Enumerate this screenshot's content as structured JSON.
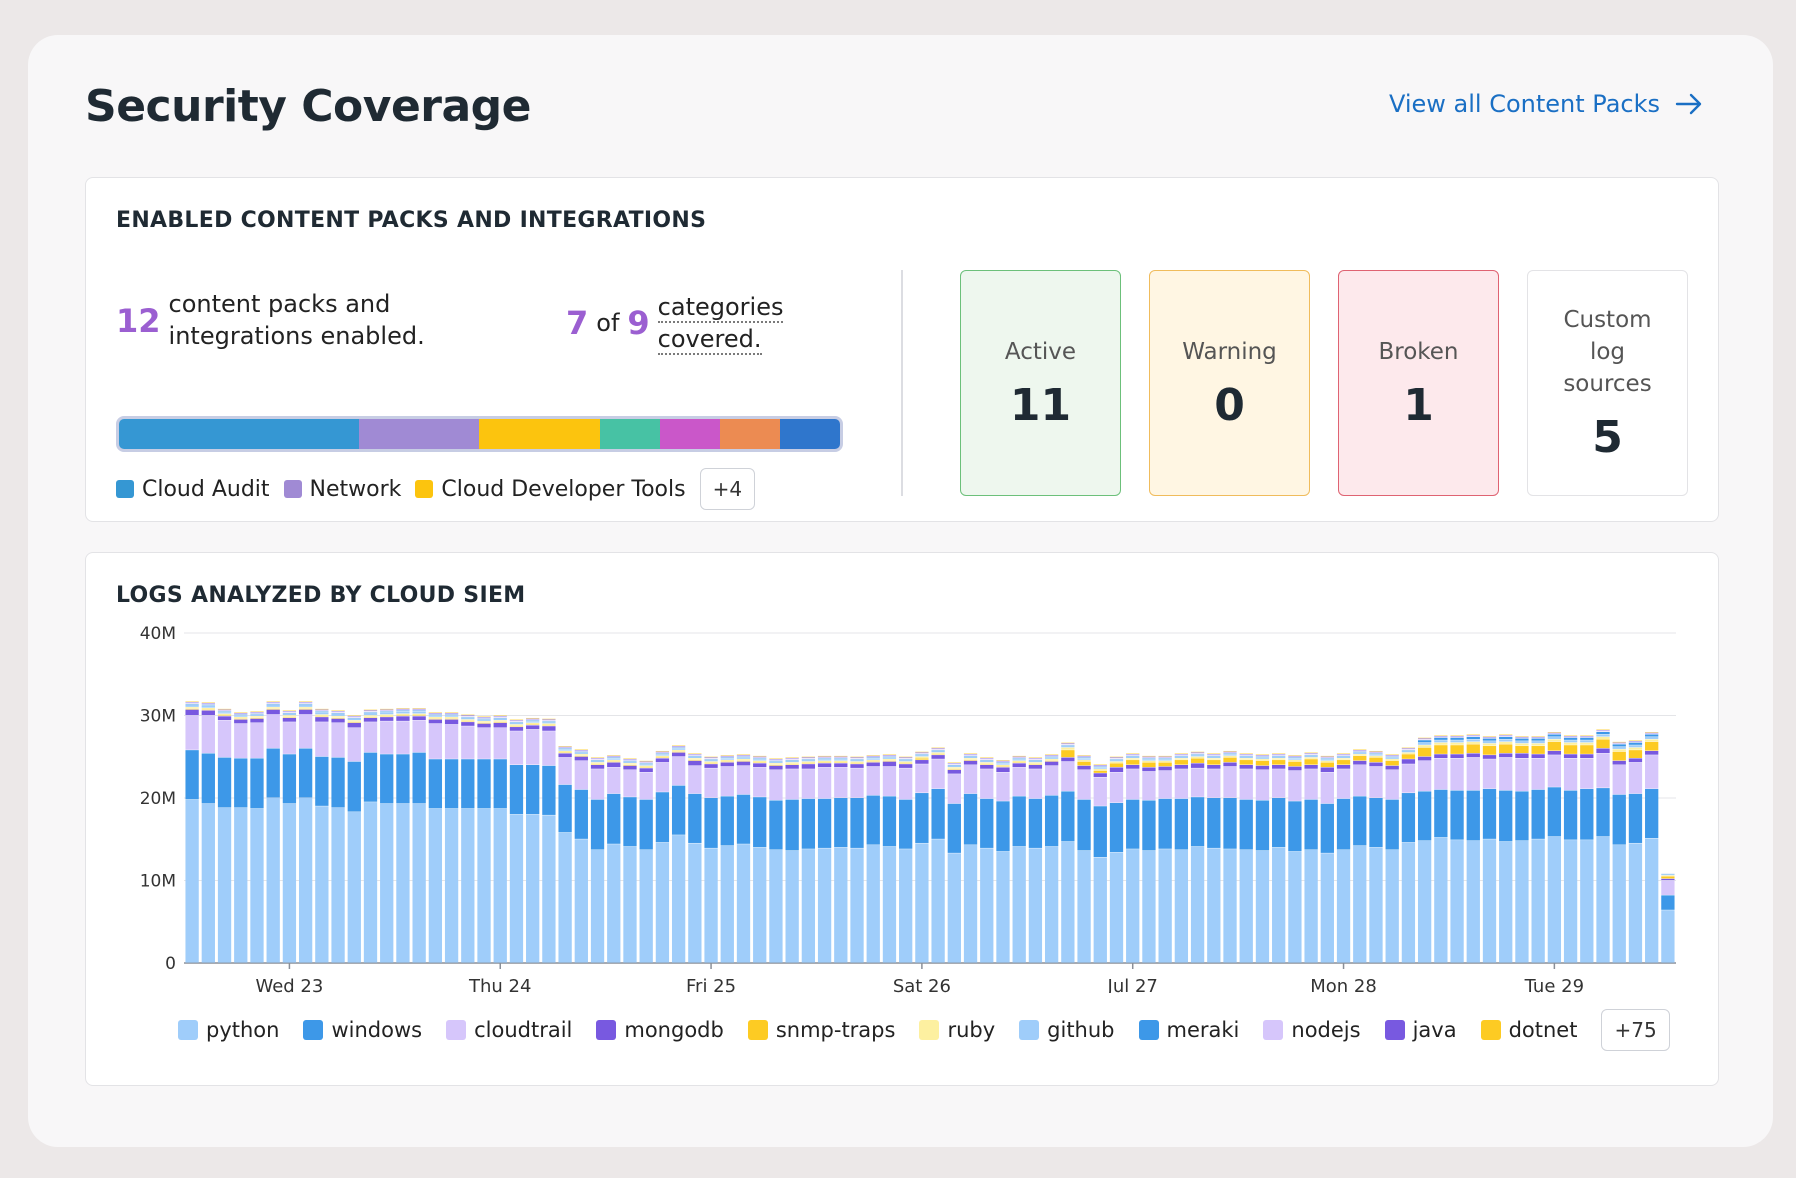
{
  "header": {
    "title": "Security Coverage",
    "view_all_label": "View all Content Packs"
  },
  "packs": {
    "title": "ENABLED CONTENT PACKS AND INTEGRATIONS",
    "enabled_count": "12",
    "enabled_text": "content packs and integrations enabled.",
    "categories_covered": "7",
    "of_text": "of",
    "categories_total": "9",
    "categories_text_1": "categories",
    "categories_text_2": "covered.",
    "bar_segments": [
      {
        "color": "#3597d3",
        "share": 2
      },
      {
        "color": "#a08ad4",
        "share": 1
      },
      {
        "color": "#fcc40e",
        "share": 1
      },
      {
        "color": "#47c2a4",
        "share": 0.5
      },
      {
        "color": "#ca57c9",
        "share": 0.5
      },
      {
        "color": "#ec8b52",
        "share": 0.5
      },
      {
        "color": "#2f76cc",
        "share": 0.5
      }
    ],
    "legend": [
      {
        "label": "Cloud Audit",
        "color": "#3597d3"
      },
      {
        "label": "Network",
        "color": "#a08ad4"
      },
      {
        "label": "Cloud Developer Tools",
        "color": "#fcc40e"
      }
    ],
    "more_label": "+4"
  },
  "status": {
    "active": {
      "label": "Active",
      "value": "11"
    },
    "warning": {
      "label": "Warning",
      "value": "0"
    },
    "broken": {
      "label": "Broken",
      "value": "1"
    },
    "custom": {
      "label": "Custom log sources",
      "value": "5"
    }
  },
  "logs": {
    "title": "LOGS ANALYZED BY CLOUD SIEM",
    "legend_more": "+75"
  },
  "chart_data": {
    "type": "bar",
    "stacked": true,
    "ylim": [
      0,
      40
    ],
    "y_unit": "M",
    "yticks": [
      "0",
      "10M",
      "20M",
      "30M",
      "40M"
    ],
    "grid": true,
    "x_tick_labels": [
      "Wed 23",
      "Thu 24",
      "Fri 25",
      "Sat 26",
      "Jul 27",
      "Mon 28",
      "Tue 29"
    ],
    "x_tick_bar_index": [
      6,
      19,
      32,
      45,
      58,
      71,
      84
    ],
    "series": [
      {
        "name": "python",
        "color": "#9fcdfa",
        "values": [
          19.8,
          19.3,
          18.8,
          18.8,
          18.7,
          20.0,
          19.3,
          20.0,
          19.0,
          18.8,
          18.3,
          19.5,
          19.3,
          19.3,
          19.3,
          18.7,
          18.7,
          18.7,
          18.7,
          18.7,
          18.0,
          18.0,
          17.9,
          15.8,
          15.0,
          13.7,
          14.4,
          14.1,
          13.7,
          14.6,
          15.5,
          14.5,
          13.9,
          14.2,
          14.4,
          14.0,
          13.7,
          13.6,
          13.8,
          13.9,
          14.0,
          13.9,
          14.3,
          14.1,
          13.8,
          14.5,
          15.0,
          13.3,
          14.3,
          13.9,
          13.5,
          14.1,
          13.9,
          14.1,
          14.7,
          13.6,
          12.8,
          13.4,
          13.8,
          13.6,
          13.8,
          13.7,
          14.1,
          13.9,
          13.8,
          13.7,
          13.6,
          14.0,
          13.5,
          13.7,
          13.3,
          13.7,
          14.2,
          14.0,
          13.7,
          14.6,
          14.8,
          15.2,
          14.9,
          14.8,
          15.0,
          14.7,
          14.8,
          15.0,
          15.3,
          14.9,
          14.9,
          15.3,
          14.3,
          14.5,
          15.1,
          6.4
        ]
      },
      {
        "name": "windows",
        "color": "#3d98e8",
        "values": [
          6.0,
          6.1,
          6.1,
          6.0,
          6.1,
          6.0,
          6.0,
          6.0,
          6.0,
          6.1,
          6.1,
          6.0,
          6.0,
          6.0,
          6.2,
          6.0,
          6.0,
          6.0,
          6.0,
          6.0,
          6.0,
          6.0,
          6.0,
          5.8,
          6.0,
          6.1,
          6.1,
          6.0,
          6.1,
          6.1,
          6.0,
          6.0,
          6.1,
          6.0,
          6.0,
          6.1,
          6.0,
          6.2,
          6.1,
          6.0,
          6.0,
          6.1,
          6.0,
          6.1,
          6.0,
          6.1,
          6.1,
          6.0,
          6.2,
          6.0,
          6.1,
          6.1,
          6.0,
          6.2,
          6.1,
          6.2,
          6.2,
          6.0,
          6.0,
          6.1,
          6.1,
          6.2,
          6.0,
          6.1,
          6.2,
          6.1,
          6.1,
          6.0,
          6.1,
          6.1,
          6.0,
          6.2,
          6.0,
          6.0,
          6.1,
          6.0,
          6.0,
          5.8,
          6.0,
          6.1,
          6.1,
          6.2,
          6.0,
          6.0,
          6.0,
          6.0,
          6.2,
          5.9,
          6.1,
          6.0,
          6.0,
          1.8
        ]
      },
      {
        "name": "cloudtrail",
        "color": "#d6c6fb",
        "values": [
          4.2,
          4.6,
          4.5,
          4.2,
          4.3,
          4.1,
          3.9,
          4.1,
          4.2,
          4.2,
          4.1,
          3.7,
          4.0,
          4.0,
          3.9,
          4.3,
          4.2,
          4.0,
          3.8,
          3.8,
          4.1,
          4.3,
          4.2,
          3.3,
          3.5,
          3.7,
          3.2,
          3.3,
          3.3,
          3.6,
          3.5,
          3.4,
          3.6,
          3.6,
          3.5,
          3.6,
          3.7,
          3.7,
          3.6,
          3.8,
          3.7,
          3.6,
          3.5,
          3.6,
          3.8,
          3.5,
          3.6,
          3.6,
          3.5,
          3.6,
          3.5,
          3.5,
          3.6,
          3.6,
          3.6,
          3.6,
          3.5,
          3.7,
          3.7,
          3.5,
          3.4,
          3.6,
          3.5,
          3.5,
          3.8,
          3.7,
          3.7,
          3.5,
          3.7,
          3.7,
          3.8,
          3.6,
          3.8,
          3.8,
          3.6,
          3.5,
          3.7,
          3.8,
          3.9,
          4.0,
          3.6,
          4.0,
          4.0,
          3.8,
          3.9,
          3.9,
          3.7,
          4.2,
          3.6,
          3.8,
          4.1,
          1.8
        ]
      },
      {
        "name": "mongodb",
        "color": "#7859e0",
        "values": [
          0.7,
          0.6,
          0.5,
          0.5,
          0.5,
          0.6,
          0.5,
          0.6,
          0.6,
          0.5,
          0.6,
          0.5,
          0.5,
          0.6,
          0.5,
          0.5,
          0.6,
          0.5,
          0.5,
          0.6,
          0.5,
          0.5,
          0.6,
          0.5,
          0.5,
          0.5,
          0.6,
          0.5,
          0.5,
          0.5,
          0.5,
          0.6,
          0.5,
          0.5,
          0.5,
          0.5,
          0.5,
          0.5,
          0.6,
          0.5,
          0.5,
          0.5,
          0.5,
          0.6,
          0.5,
          0.5,
          0.5,
          0.5,
          0.5,
          0.5,
          0.6,
          0.5,
          0.5,
          0.5,
          0.5,
          0.5,
          0.5,
          0.6,
          0.5,
          0.5,
          0.5,
          0.5,
          0.6,
          0.5,
          0.5,
          0.5,
          0.5,
          0.5,
          0.5,
          0.5,
          0.6,
          0.5,
          0.5,
          0.5,
          0.5,
          0.6,
          0.5,
          0.5,
          0.5,
          0.5,
          0.5,
          0.5,
          0.6,
          0.5,
          0.5,
          0.5,
          0.5,
          0.6,
          0.5,
          0.5,
          0.5,
          0.2
        ]
      },
      {
        "name": "snmp-traps",
        "color": "#fdcb23",
        "values": [
          0.1,
          0.1,
          0.1,
          0.1,
          0.1,
          0.1,
          0.1,
          0.1,
          0.1,
          0.1,
          0.1,
          0.1,
          0.1,
          0.1,
          0.1,
          0.1,
          0.1,
          0.1,
          0.1,
          0.1,
          0.1,
          0.1,
          0.1,
          0.1,
          0.1,
          0.1,
          0.1,
          0.1,
          0.1,
          0.1,
          0.1,
          0.1,
          0.1,
          0.1,
          0.1,
          0.1,
          0.1,
          0.1,
          0.1,
          0.1,
          0.1,
          0.1,
          0.1,
          0.1,
          0.1,
          0.2,
          0.1,
          0.1,
          0.1,
          0.1,
          0.1,
          0.1,
          0.1,
          0.1,
          0.9,
          0.5,
          0.3,
          0.5,
          0.6,
          0.6,
          0.5,
          0.6,
          0.6,
          0.6,
          0.6,
          0.6,
          0.6,
          0.6,
          0.6,
          0.7,
          0.6,
          0.6,
          0.6,
          0.6,
          0.6,
          0.6,
          1.1,
          1.1,
          1.1,
          1.1,
          1.1,
          1.1,
          0.9,
          1.0,
          1.1,
          1.1,
          1.1,
          1.1,
          1.1,
          1.0,
          1.1,
          0.3
        ]
      },
      {
        "name": "ruby",
        "color": "#fdf0a0",
        "values": [
          0.2,
          0.2,
          0.2,
          0.2,
          0.2,
          0.2,
          0.2,
          0.2,
          0.2,
          0.2,
          0.2,
          0.2,
          0.2,
          0.2,
          0.2,
          0.2,
          0.2,
          0.2,
          0.2,
          0.2,
          0.2,
          0.2,
          0.2,
          0.2,
          0.2,
          0.2,
          0.2,
          0.2,
          0.2,
          0.2,
          0.2,
          0.2,
          0.2,
          0.2,
          0.2,
          0.2,
          0.2,
          0.2,
          0.2,
          0.2,
          0.2,
          0.2,
          0.2,
          0.2,
          0.2,
          0.2,
          0.2,
          0.2,
          0.2,
          0.2,
          0.2,
          0.2,
          0.2,
          0.2,
          0.3,
          0.2,
          0.2,
          0.2,
          0.2,
          0.2,
          0.2,
          0.2,
          0.2,
          0.2,
          0.2,
          0.2,
          0.2,
          0.2,
          0.2,
          0.2,
          0.2,
          0.2,
          0.2,
          0.2,
          0.2,
          0.2,
          0.3,
          0.3,
          0.3,
          0.3,
          0.3,
          0.3,
          0.3,
          0.3,
          0.3,
          0.3,
          0.3,
          0.3,
          0.3,
          0.3,
          0.3,
          0.1
        ]
      },
      {
        "name": "github",
        "color": "#9fcdfa",
        "values": [
          0.3,
          0.3,
          0.2,
          0.2,
          0.2,
          0.3,
          0.2,
          0.3,
          0.3,
          0.3,
          0.2,
          0.3,
          0.3,
          0.3,
          0.3,
          0.2,
          0.2,
          0.2,
          0.2,
          0.2,
          0.2,
          0.2,
          0.2,
          0.2,
          0.2,
          0.2,
          0.2,
          0.2,
          0.2,
          0.2,
          0.2,
          0.2,
          0.2,
          0.2,
          0.2,
          0.2,
          0.2,
          0.2,
          0.2,
          0.2,
          0.2,
          0.2,
          0.2,
          0.2,
          0.2,
          0.2,
          0.2,
          0.2,
          0.2,
          0.2,
          0.2,
          0.2,
          0.2,
          0.2,
          0.2,
          0.2,
          0.2,
          0.2,
          0.2,
          0.2,
          0.2,
          0.2,
          0.2,
          0.2,
          0.2,
          0.2,
          0.2,
          0.2,
          0.2,
          0.2,
          0.2,
          0.2,
          0.2,
          0.2,
          0.2,
          0.2,
          0.3,
          0.3,
          0.3,
          0.3,
          0.3,
          0.3,
          0.3,
          0.3,
          0.3,
          0.3,
          0.3,
          0.3,
          0.3,
          0.3,
          0.3,
          0.1
        ]
      },
      {
        "name": "meraki",
        "color": "#3d98e8",
        "values": [
          0.1,
          0.1,
          0.1,
          0.1,
          0.1,
          0.1,
          0.1,
          0.1,
          0.1,
          0.1,
          0.1,
          0.1,
          0.1,
          0.1,
          0.1,
          0.1,
          0.1,
          0.1,
          0.1,
          0.1,
          0.1,
          0.1,
          0.1,
          0.1,
          0.1,
          0.1,
          0.1,
          0.1,
          0.1,
          0.1,
          0.1,
          0.1,
          0.1,
          0.1,
          0.1,
          0.1,
          0.1,
          0.1,
          0.1,
          0.1,
          0.1,
          0.1,
          0.1,
          0.1,
          0.1,
          0.1,
          0.1,
          0.1,
          0.1,
          0.1,
          0.1,
          0.1,
          0.1,
          0.1,
          0.1,
          0.1,
          0.1,
          0.1,
          0.1,
          0.1,
          0.1,
          0.1,
          0.1,
          0.1,
          0.1,
          0.1,
          0.1,
          0.1,
          0.1,
          0.1,
          0.1,
          0.1,
          0.1,
          0.1,
          0.1,
          0.1,
          0.3,
          0.3,
          0.3,
          0.3,
          0.3,
          0.3,
          0.3,
          0.3,
          0.3,
          0.3,
          0.3,
          0.3,
          0.3,
          0.3,
          0.3,
          0.1
        ]
      },
      {
        "name": "nodejs",
        "color": "#d6c6fb",
        "values": [
          0.1,
          0.1,
          0.1,
          0.1,
          0.1,
          0.1,
          0.1,
          0.1,
          0.1,
          0.1,
          0.1,
          0.1,
          0.1,
          0.1,
          0.1,
          0.1,
          0.1,
          0.1,
          0.1,
          0.1,
          0.1,
          0.1,
          0.1,
          0.1,
          0.1,
          0.1,
          0.1,
          0.1,
          0.1,
          0.1,
          0.1,
          0.1,
          0.1,
          0.1,
          0.1,
          0.1,
          0.1,
          0.1,
          0.1,
          0.1,
          0.1,
          0.1,
          0.1,
          0.1,
          0.1,
          0.1,
          0.1,
          0.1,
          0.1,
          0.1,
          0.1,
          0.1,
          0.1,
          0.1,
          0.1,
          0.1,
          0.1,
          0.1,
          0.1,
          0.1,
          0.1,
          0.1,
          0.1,
          0.1,
          0.1,
          0.1,
          0.1,
          0.1,
          0.1,
          0.1,
          0.1,
          0.1,
          0.1,
          0.1,
          0.1,
          0.1,
          0.1,
          0.1,
          0.1,
          0.1,
          0.1,
          0.1,
          0.1,
          0.1,
          0.1,
          0.1,
          0.1,
          0.1,
          0.1,
          0.1,
          0.1,
          0.05
        ]
      },
      {
        "name": "java",
        "color": "#7859e0",
        "values": [
          0.1,
          0.1,
          0.1,
          0.1,
          0.1,
          0.1,
          0.1,
          0.1,
          0.1,
          0.1,
          0.1,
          0.1,
          0.1,
          0.1,
          0.1,
          0.1,
          0.1,
          0.1,
          0.1,
          0.1,
          0.1,
          0.1,
          0.1,
          0.1,
          0.1,
          0.1,
          0.1,
          0.1,
          0.1,
          0.1,
          0.1,
          0.1,
          0.1,
          0.1,
          0.1,
          0.1,
          0.1,
          0.1,
          0.1,
          0.1,
          0.1,
          0.1,
          0.1,
          0.1,
          0.1,
          0.1,
          0.1,
          0.1,
          0.1,
          0.1,
          0.1,
          0.1,
          0.1,
          0.1,
          0.1,
          0.1,
          0.1,
          0.1,
          0.1,
          0.1,
          0.1,
          0.1,
          0.1,
          0.1,
          0.1,
          0.1,
          0.1,
          0.1,
          0.1,
          0.1,
          0.1,
          0.1,
          0.1,
          0.1,
          0.1,
          0.1,
          0.1,
          0.1,
          0.1,
          0.1,
          0.1,
          0.1,
          0.1,
          0.1,
          0.1,
          0.1,
          0.1,
          0.1,
          0.1,
          0.1,
          0.1,
          0.05
        ]
      },
      {
        "name": "dotnet",
        "color": "#fdcb23",
        "values": [
          0.1,
          0.1,
          0.1,
          0.1,
          0.1,
          0.1,
          0.1,
          0.1,
          0.1,
          0.1,
          0.1,
          0.1,
          0.1,
          0.1,
          0.1,
          0.1,
          0.1,
          0.1,
          0.1,
          0.1,
          0.1,
          0.1,
          0.1,
          0.1,
          0.1,
          0.1,
          0.1,
          0.1,
          0.1,
          0.1,
          0.1,
          0.1,
          0.1,
          0.1,
          0.1,
          0.1,
          0.1,
          0.1,
          0.1,
          0.1,
          0.1,
          0.1,
          0.1,
          0.1,
          0.1,
          0.1,
          0.1,
          0.1,
          0.1,
          0.1,
          0.1,
          0.1,
          0.1,
          0.1,
          0.1,
          0.1,
          0.1,
          0.1,
          0.1,
          0.1,
          0.1,
          0.1,
          0.1,
          0.1,
          0.1,
          0.1,
          0.1,
          0.1,
          0.1,
          0.1,
          0.1,
          0.1,
          0.1,
          0.1,
          0.1,
          0.1,
          0.1,
          0.1,
          0.1,
          0.1,
          0.1,
          0.1,
          0.1,
          0.1,
          0.1,
          0.1,
          0.1,
          0.1,
          0.1,
          0.1,
          0.1,
          0.05
        ]
      }
    ]
  }
}
